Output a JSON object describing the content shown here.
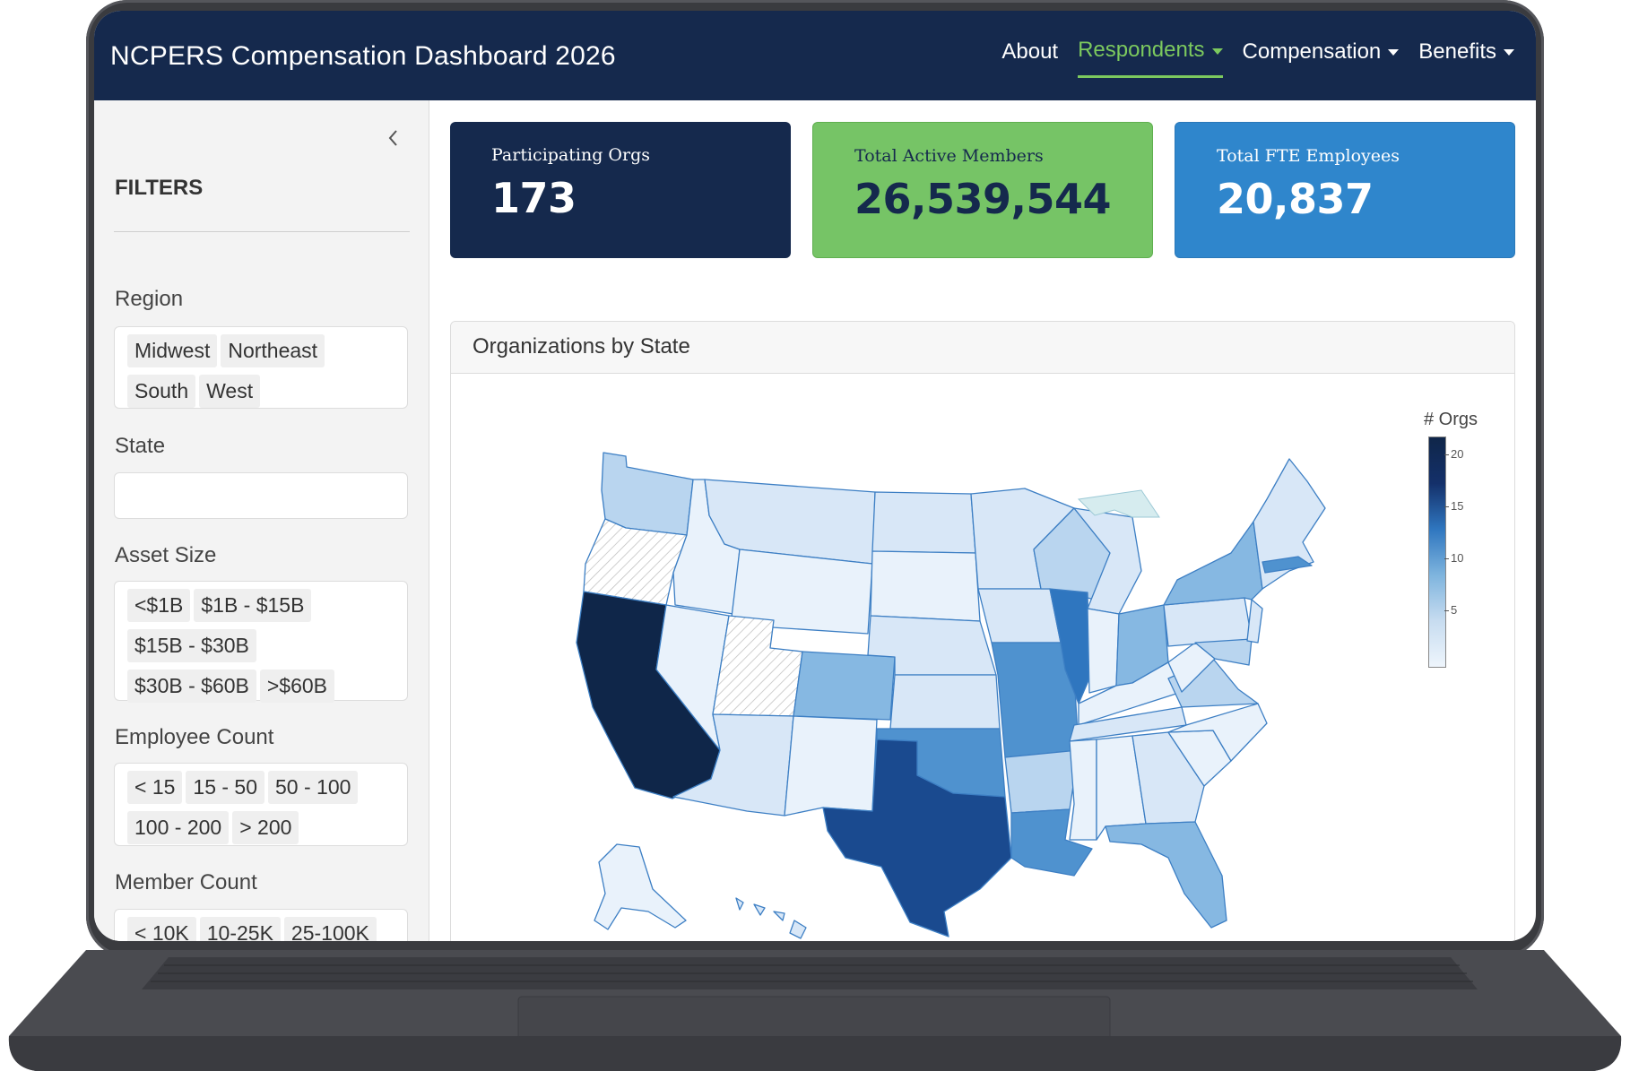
{
  "app": {
    "title": "NCPERS Compensation Dashboard 2026"
  },
  "nav": {
    "items": [
      {
        "label": "About",
        "dropdown": false,
        "active": false
      },
      {
        "label": "Respondents",
        "dropdown": true,
        "active": true
      },
      {
        "label": "Compensation",
        "dropdown": true,
        "active": false
      },
      {
        "label": "Benefits",
        "dropdown": true,
        "active": false
      }
    ]
  },
  "sidebar": {
    "heading": "FILTERS",
    "collapse_icon": "chevron-left-icon",
    "filters": {
      "region": {
        "label": "Region",
        "options": [
          "Midwest",
          "Northeast",
          "South",
          "West"
        ]
      },
      "state": {
        "label": "State",
        "value": ""
      },
      "asset_size": {
        "label": "Asset Size",
        "options": [
          "<$1B",
          "$1B - $15B",
          "$15B - $30B",
          "$30B - $60B",
          ">$60B"
        ]
      },
      "employee_count": {
        "label": "Employee Count",
        "options": [
          "< 15",
          "15 - 50",
          "50 - 100",
          "100 - 200",
          "> 200"
        ]
      },
      "member_count": {
        "label": "Member Count",
        "options": [
          "< 10K",
          "10-25K",
          "25-100K"
        ]
      }
    }
  },
  "kpis": [
    {
      "label": "Participating Orgs",
      "value": "173",
      "bg": "#15294d",
      "fg": "#ffffff"
    },
    {
      "label": "Total Active Members",
      "value": "26,539,544",
      "bg": "#76c466",
      "fg": "#15294d"
    },
    {
      "label": "Total FTE Employees",
      "value": "20,837",
      "bg": "#2f86cc",
      "fg": "#ffffff"
    }
  ],
  "map": {
    "title": "Organizations by State",
    "legend_title": "# Orgs",
    "legend_ticks": [
      "20",
      "15",
      "10",
      "5"
    ],
    "legend_range": [
      1,
      23
    ],
    "colors": {
      "very_dark": "#0f2649",
      "dark": "#1a4a8f",
      "medium_dark": "#2f76bf",
      "medium": "#4f92cf",
      "light_medium": "#86b8e2",
      "light": "#b9d5ef",
      "very_light": "#d8e7f7",
      "lightest": "#e9f2fb",
      "no_data_hatch": "#bfbfbf"
    }
  }
}
